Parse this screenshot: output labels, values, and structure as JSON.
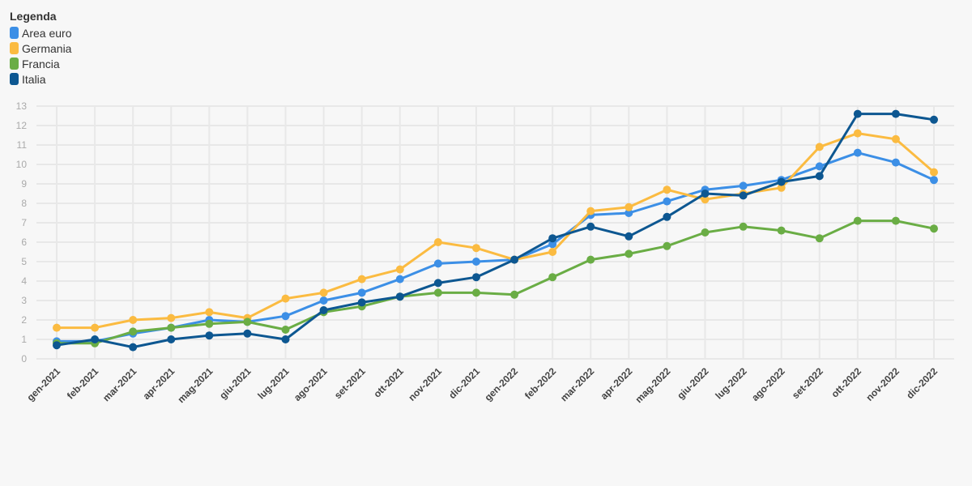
{
  "legend": {
    "title": "Legenda",
    "items": [
      {
        "label": "Area euro",
        "color": "#3c8fe6"
      },
      {
        "label": "Germania",
        "color": "#fbbb41"
      },
      {
        "label": "Francia",
        "color": "#6aad45"
      },
      {
        "label": "Italia",
        "color": "#0d5791"
      }
    ]
  },
  "chart_data": {
    "type": "line",
    "categories": [
      "gen-2021",
      "feb-2021",
      "mar-2021",
      "apr-2021",
      "mag-2021",
      "giu-2021",
      "lug-2021",
      "ago-2021",
      "set-2021",
      "ott-2021",
      "nov-2021",
      "dic-2021",
      "gen-2022",
      "feb-2022",
      "mar-2022",
      "apr-2022",
      "mag-2022",
      "giu-2022",
      "lug-2022",
      "ago-2022",
      "set-2022",
      "ott-2022",
      "nov-2022",
      "dic-2022"
    ],
    "ylim": [
      0,
      13
    ],
    "yticks": [
      0,
      1,
      2,
      3,
      4,
      5,
      6,
      7,
      8,
      9,
      10,
      11,
      12,
      13
    ],
    "grid": true,
    "legend_position": "top-left",
    "series": [
      {
        "name": "Area euro",
        "color": "#3c8fe6",
        "values": [
          0.9,
          0.9,
          1.3,
          1.6,
          2.0,
          1.9,
          2.2,
          3.0,
          3.4,
          4.1,
          4.9,
          5.0,
          5.1,
          5.9,
          7.4,
          7.5,
          8.1,
          8.7,
          8.9,
          9.2,
          9.9,
          10.6,
          10.1,
          9.2
        ]
      },
      {
        "name": "Germania",
        "color": "#fbbb41",
        "values": [
          1.6,
          1.6,
          2.0,
          2.1,
          2.4,
          2.1,
          3.1,
          3.4,
          4.1,
          4.6,
          6.0,
          5.7,
          5.1,
          5.5,
          7.6,
          7.8,
          8.7,
          8.2,
          8.5,
          8.8,
          10.9,
          11.6,
          11.3,
          9.6
        ]
      },
      {
        "name": "Francia",
        "color": "#6aad45",
        "values": [
          0.8,
          0.8,
          1.4,
          1.6,
          1.8,
          1.9,
          1.5,
          2.4,
          2.7,
          3.2,
          3.4,
          3.4,
          3.3,
          4.2,
          5.1,
          5.4,
          5.8,
          6.5,
          6.8,
          6.6,
          6.2,
          7.1,
          7.1,
          6.7
        ]
      },
      {
        "name": "Italia",
        "color": "#0d5791",
        "values": [
          0.7,
          1.0,
          0.6,
          1.0,
          1.2,
          1.3,
          1.0,
          2.5,
          2.9,
          3.2,
          3.9,
          4.2,
          5.1,
          6.2,
          6.8,
          6.3,
          7.3,
          8.5,
          8.4,
          9.1,
          9.4,
          12.6,
          12.6,
          12.3
        ]
      }
    ]
  }
}
